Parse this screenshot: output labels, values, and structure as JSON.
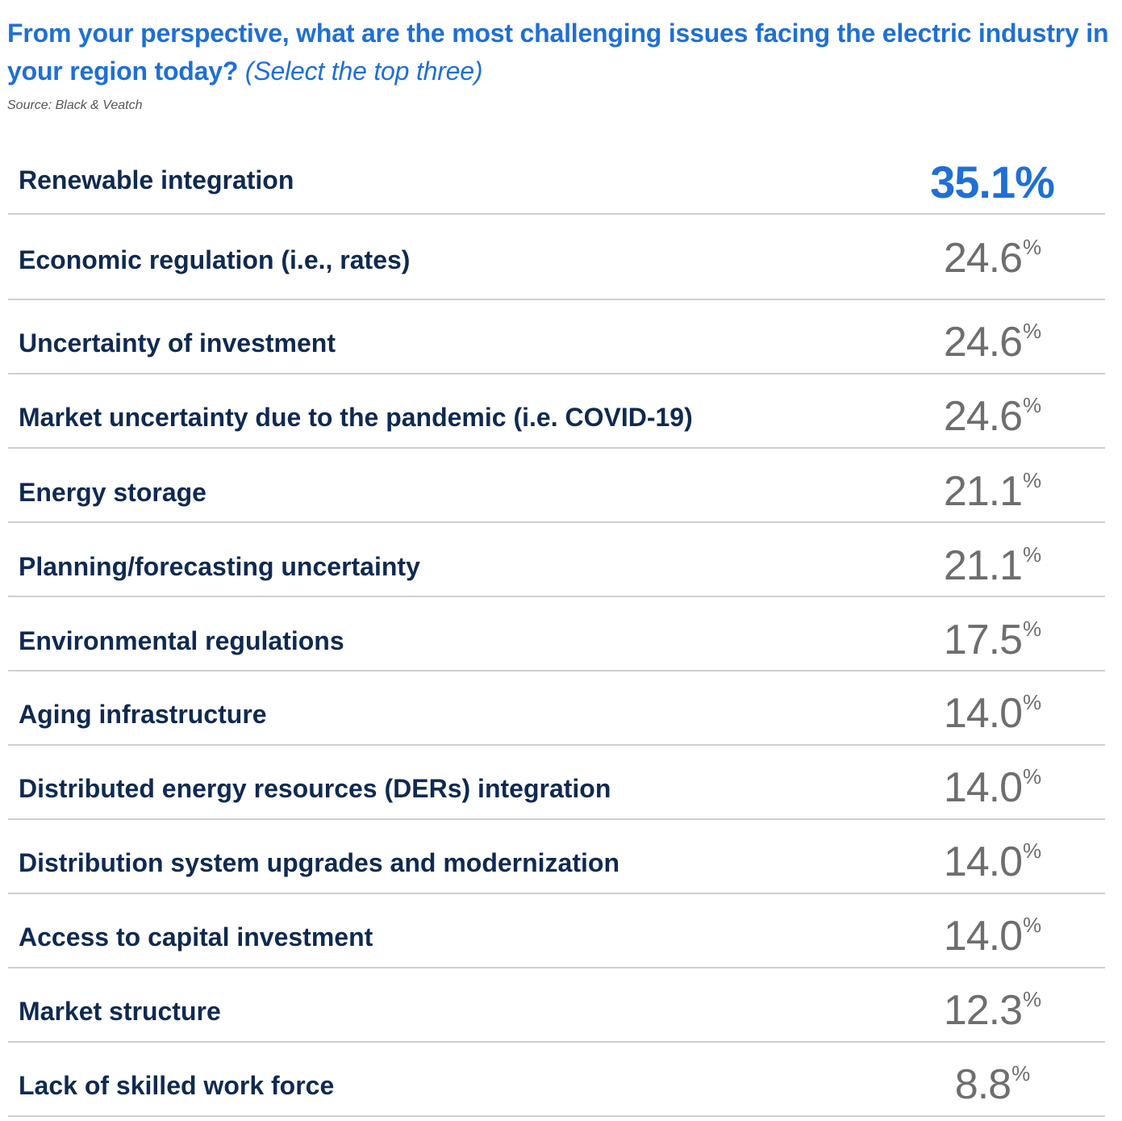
{
  "header": {
    "title": "From your perspective, what are the most challenging issues facing the electric industry in your region today?",
    "subtitle": "(Select the top three)",
    "source": "Source: Black & Veatch"
  },
  "colors": {
    "accent": "#1f6fd6",
    "label": "#0f2a52",
    "value": "#6e6e6e",
    "divider": "#cfcfcf"
  },
  "chart_data": {
    "type": "table",
    "title": "From your perspective, what are the most challenging issues facing the electric industry in your region today? (Select the top three)",
    "unit": "%",
    "categories": [
      "Renewable integration",
      "Economic regulation (i.e., rates)",
      "Uncertainty of investment",
      "Market uncertainty due to the pandemic (i.e. COVID-19)",
      "Energy storage",
      "Planning/forecasting uncertainty",
      "Environmental regulations",
      "Aging infrastructure",
      "Distributed energy resources (DERs) integration",
      "Distribution system upgrades and modernization",
      "Access to capital investment",
      "Market structure",
      "Lack of skilled work force"
    ],
    "values": [
      "35.1",
      "24.6",
      "24.6",
      "24.6",
      "21.1",
      "21.1",
      "17.5",
      "14.0",
      "14.0",
      "14.0",
      "14.0",
      "12.3",
      "8.8"
    ],
    "highlight_index": 0
  }
}
